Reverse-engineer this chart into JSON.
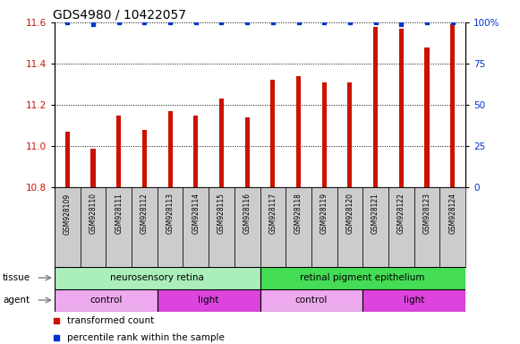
{
  "title": "GDS4980 / 10422057",
  "samples": [
    "GSM928109",
    "GSM928110",
    "GSM928111",
    "GSM928112",
    "GSM928113",
    "GSM928114",
    "GSM928115",
    "GSM928116",
    "GSM928117",
    "GSM928118",
    "GSM928119",
    "GSM928120",
    "GSM928121",
    "GSM928122",
    "GSM928123",
    "GSM928124"
  ],
  "bar_values": [
    11.07,
    10.99,
    11.15,
    11.08,
    11.17,
    11.15,
    11.23,
    11.14,
    11.32,
    11.34,
    11.31,
    11.31,
    11.58,
    11.57,
    11.48,
    11.59
  ],
  "percentile_values": [
    100,
    99,
    100,
    100,
    100,
    100,
    100,
    100,
    100,
    100,
    100,
    100,
    100,
    99,
    100,
    100
  ],
  "ylim_left": [
    10.8,
    11.6
  ],
  "ylim_right": [
    0,
    100
  ],
  "yticks_left": [
    10.8,
    11.0,
    11.2,
    11.4,
    11.6
  ],
  "yticks_right": [
    0,
    25,
    50,
    75,
    100
  ],
  "bar_color": "#cc1100",
  "dot_color": "#0033cc",
  "background_color": "#ffffff",
  "sample_bg_color": "#cccccc",
  "tissue_groups": [
    {
      "label": "neurosensory retina",
      "start": 0,
      "end": 8,
      "color": "#aaeebb"
    },
    {
      "label": "retinal pigment epithelium",
      "start": 8,
      "end": 16,
      "color": "#44dd55"
    }
  ],
  "agent_groups": [
    {
      "label": "control",
      "start": 0,
      "end": 4,
      "color": "#eeaaee"
    },
    {
      "label": "light",
      "start": 4,
      "end": 8,
      "color": "#dd44dd"
    },
    {
      "label": "control",
      "start": 8,
      "end": 12,
      "color": "#eeaaee"
    },
    {
      "label": "light",
      "start": 12,
      "end": 16,
      "color": "#dd44dd"
    }
  ],
  "legend_items": [
    {
      "label": "transformed count",
      "color": "#cc1100"
    },
    {
      "label": "percentile rank within the sample",
      "color": "#0033cc"
    }
  ],
  "tick_fontsize": 7.5,
  "title_fontsize": 10,
  "label_fontsize": 7.5,
  "sample_fontsize": 5.5
}
